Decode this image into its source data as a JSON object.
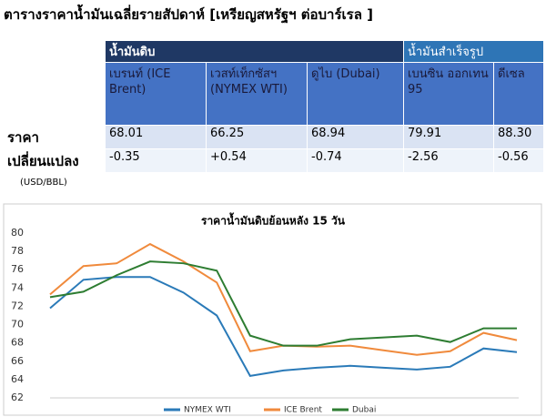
{
  "header": {
    "title": "ตารางราคาน้ำมันเฉลี่ยรายสัปดาห์ [เหรียญสหรัฐฯ ต่อบาร์เรล ]"
  },
  "table": {
    "groups": [
      "น้ำมันดิบ",
      "น้ำมันสำเร็จรูป"
    ],
    "columns": [
      "เบรนท์ (ICE Brent)",
      "เวสท์เท็กซัสฯ (NYMEX WTI)",
      "ดูไบ (Dubai)",
      "เบนซิน ออกเทน 95",
      "ดีเซล"
    ],
    "rows": [
      {
        "label": "ราคา",
        "values": [
          "68.01",
          "66.25",
          "68.94",
          "79.91",
          "88.30"
        ]
      },
      {
        "label": "เปลี่ยนแปลง",
        "values": [
          "-0.35",
          "+0.54",
          "-0.74",
          "-2.56",
          "-0.56"
        ]
      }
    ],
    "unit": "(USD/BBL)"
  },
  "chart_data": {
    "type": "line",
    "title": "ราคาน้ำมันดิบย้อนหลัง 15 วัน",
    "categories": [
      null,
      null,
      null,
      null,
      null,
      null,
      null,
      null,
      null,
      null,
      null,
      null,
      null,
      null,
      null
    ],
    "series": [
      {
        "name": "NYMEX WTI",
        "color": "#2a7ab8",
        "values": [
          71.8,
          74.9,
          75.2,
          75.2,
          73.5,
          71.0,
          64.4,
          65.0,
          65.3,
          65.5,
          65.3,
          65.1,
          65.4,
          67.4,
          67.0
        ]
      },
      {
        "name": "ICE Brent",
        "color": "#f08a3c",
        "values": [
          73.3,
          76.4,
          76.7,
          78.8,
          76.9,
          74.6,
          67.1,
          67.7,
          67.6,
          67.7,
          67.2,
          66.7,
          67.1,
          69.1,
          68.3
        ]
      },
      {
        "name": "Dubai",
        "color": "#2e7d32",
        "values": [
          73.0,
          73.6,
          75.4,
          76.9,
          76.7,
          75.9,
          68.8,
          67.7,
          67.7,
          68.4,
          68.6,
          68.8,
          68.1,
          69.6,
          69.6
        ]
      }
    ],
    "ylim": [
      62,
      80
    ],
    "yticks": [
      62,
      64,
      66,
      68,
      70,
      72,
      74,
      76,
      78,
      80
    ],
    "legend": "bottom"
  }
}
